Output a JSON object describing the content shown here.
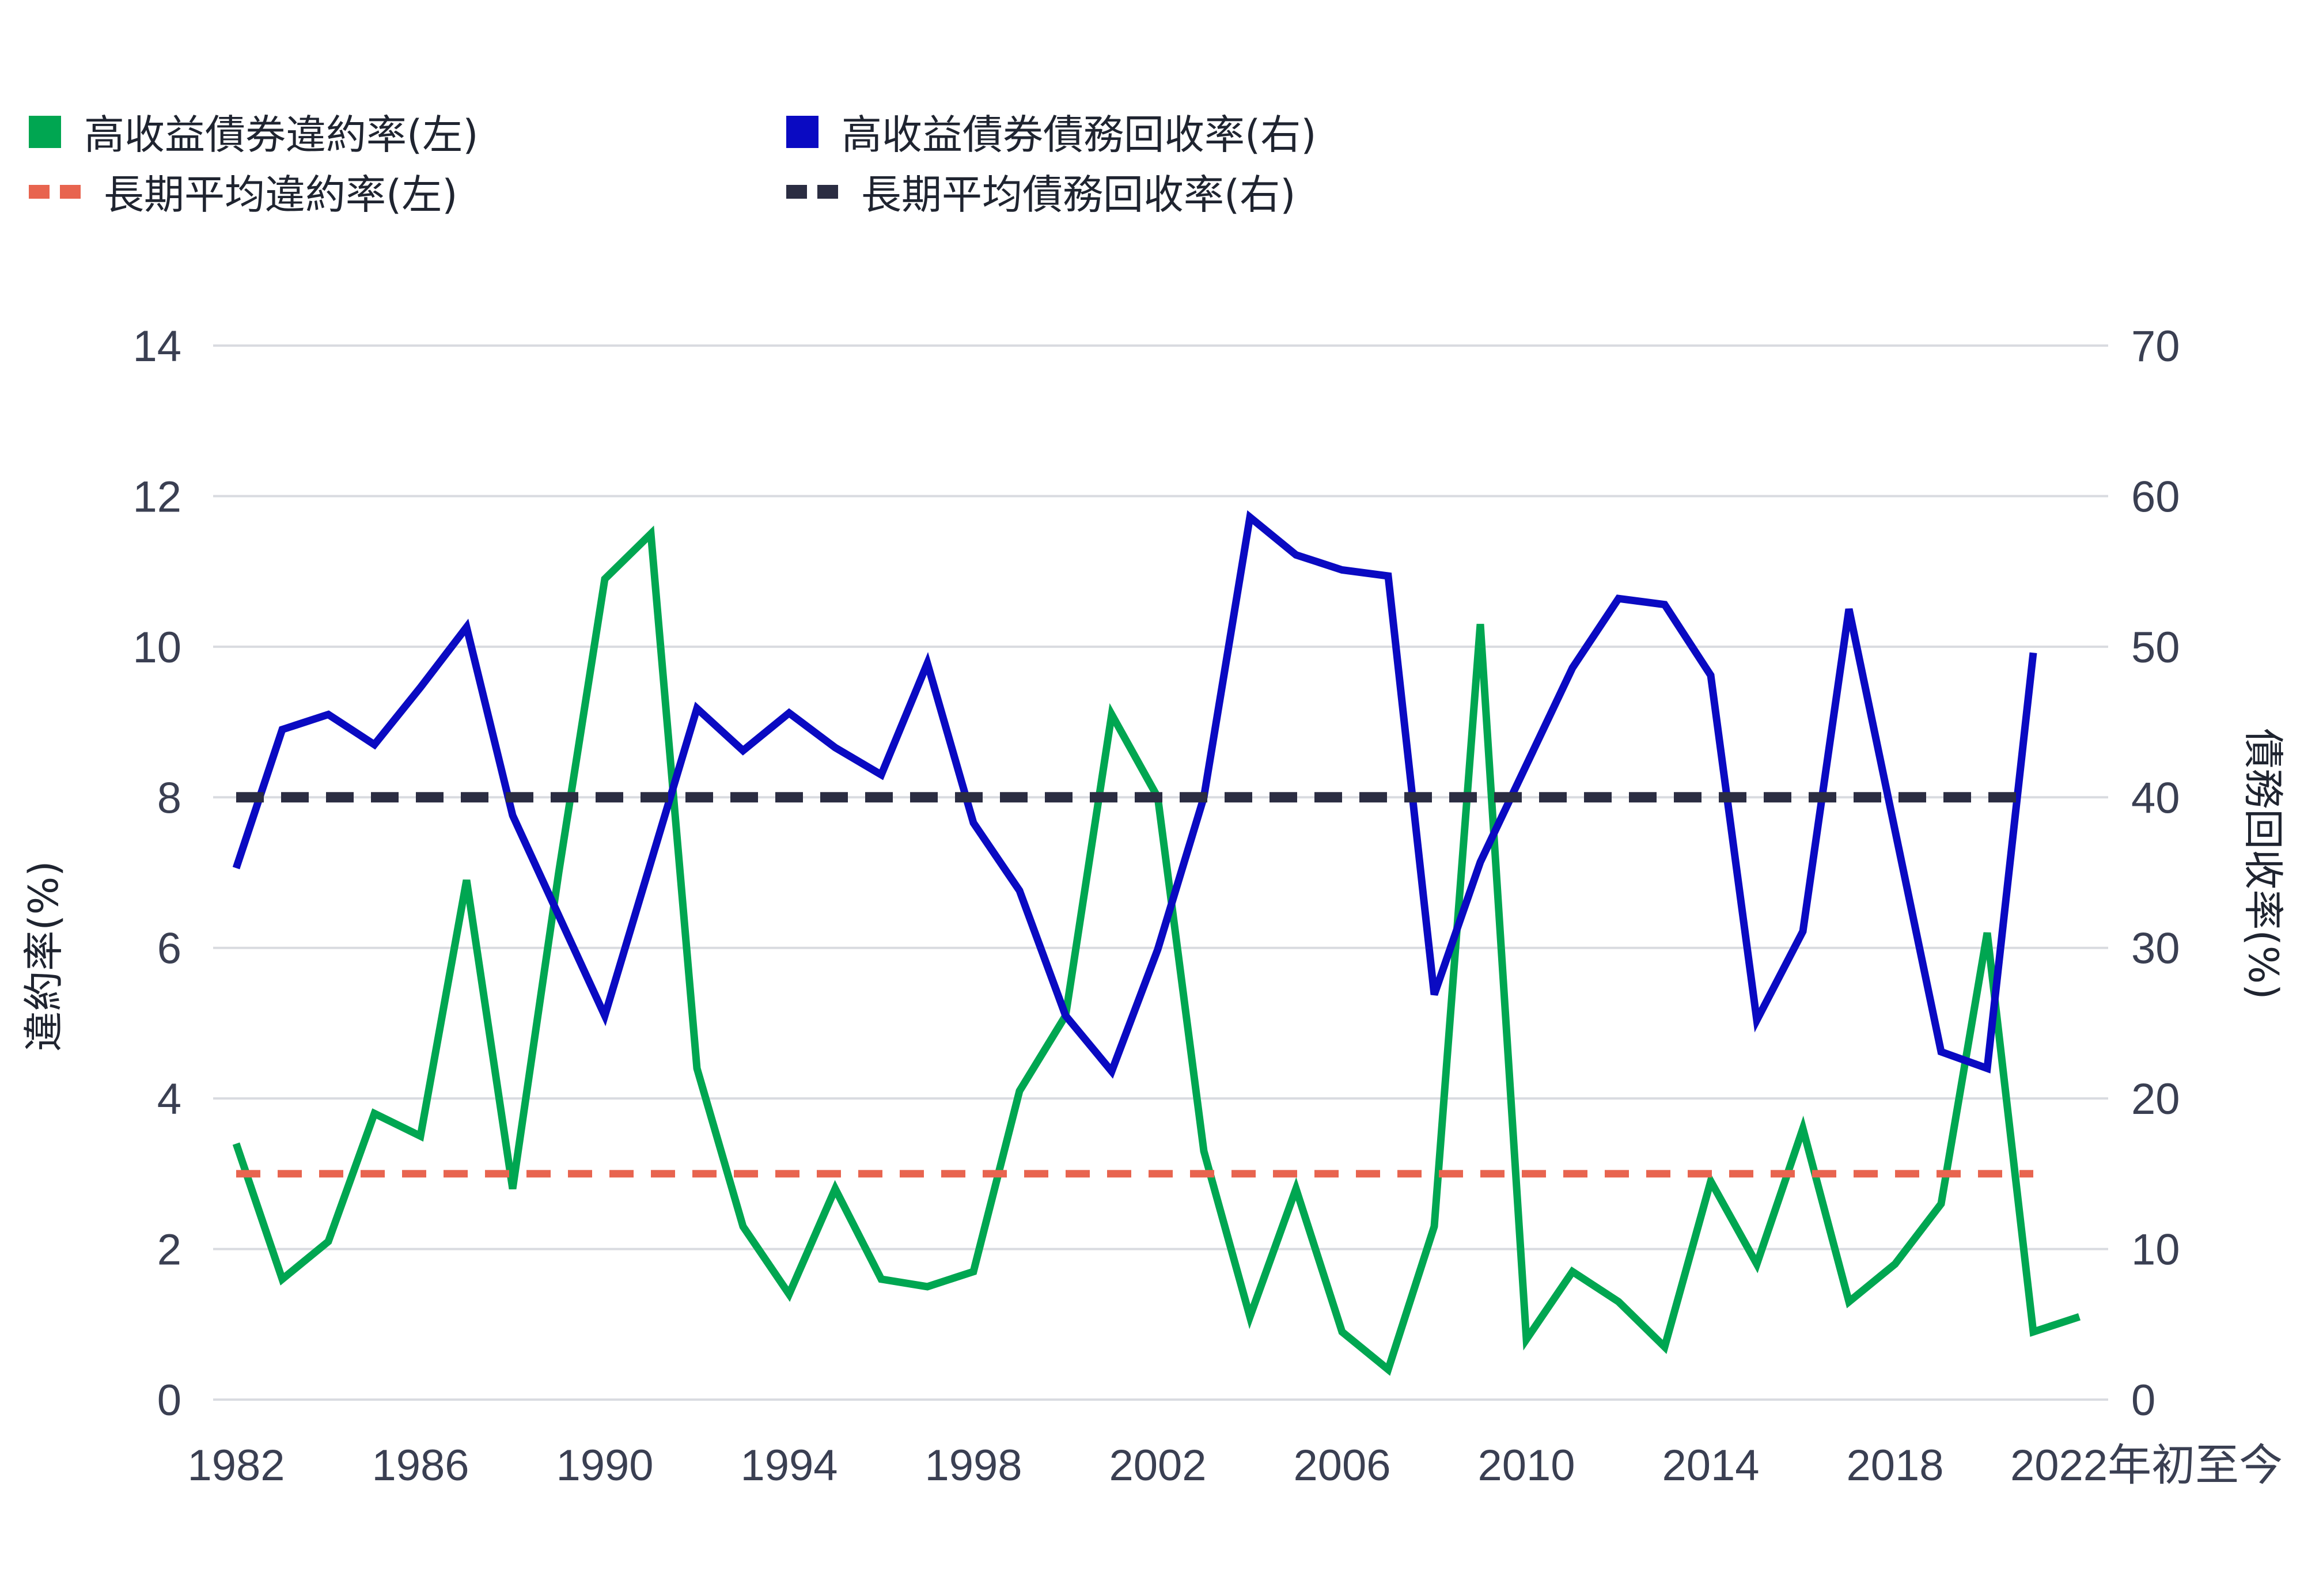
{
  "legend": [
    {
      "label": "高收益債券違約率(左)",
      "color": "#00a651",
      "style": "square"
    },
    {
      "label": "高收益債券債務回收率(右)",
      "color": "#0a0ac2",
      "style": "square"
    },
    {
      "label": "長期平均違約率(左)",
      "color": "#e8644f",
      "style": "dash"
    },
    {
      "label": "長期平均債務回收率(右)",
      "color": "#2b2d42",
      "style": "dash"
    }
  ],
  "chart_data": {
    "type": "line",
    "title": "",
    "ylabel_left": "違約率(%)",
    "ylabel_right": "債務回收率(%)",
    "ylim_left": [
      0,
      14
    ],
    "ylim_right": [
      0,
      70
    ],
    "yticks_left": [
      "0",
      "2",
      "4",
      "6",
      "8",
      "10",
      "12",
      "14"
    ],
    "yticks_right": [
      "0",
      "10",
      "20",
      "30",
      "40",
      "50",
      "60",
      "70"
    ],
    "xticks": [
      "1982",
      "1986",
      "1990",
      "1994",
      "1998",
      "2002",
      "2006",
      "2010",
      "2014",
      "2018",
      "2022年初至今"
    ],
    "grid": true,
    "x": [
      1982,
      1983,
      1984,
      1985,
      1986,
      1987,
      1988,
      1989,
      1990,
      1991,
      1992,
      1993,
      1994,
      1995,
      1996,
      1997,
      1998,
      1999,
      2000,
      2001,
      2002,
      2003,
      2004,
      2005,
      2006,
      2007,
      2008,
      2009,
      2010,
      2011,
      2012,
      2013,
      2014,
      2015,
      2016,
      2017,
      2018,
      2019,
      2020,
      2021,
      2022
    ],
    "series": [
      {
        "name": "高收益債券違約率(左)",
        "axis": "left",
        "color": "#00a651",
        "values": [
          3.4,
          1.6,
          2.1,
          3.8,
          3.5,
          6.9,
          2.8,
          7.0,
          10.9,
          11.5,
          4.4,
          2.3,
          1.4,
          2.8,
          1.6,
          1.5,
          1.7,
          4.1,
          5.1,
          9.1,
          8.0,
          3.3,
          1.1,
          2.8,
          0.9,
          0.4,
          2.3,
          10.3,
          0.8,
          1.7,
          1.3,
          0.7,
          2.9,
          1.8,
          3.6,
          1.3,
          1.8,
          2.6,
          6.2,
          0.9,
          1.1
        ]
      },
      {
        "name": "高收益債券債務回收率(右)",
        "axis": "right",
        "color": "#0a0ac2",
        "values": [
          35.3,
          44.5,
          45.5,
          43.5,
          47.3,
          51.3,
          38.8,
          null,
          25.5,
          null,
          45.9,
          43.1,
          45.6,
          43.3,
          41.5,
          48.9,
          38.3,
          33.8,
          25.5,
          21.8,
          29.9,
          40.0,
          58.6,
          56.1,
          55.1,
          54.7,
          26.9,
          35.7,
          null,
          48.6,
          53.2,
          52.8,
          48.1,
          25.2,
          31.1,
          52.5,
          null,
          23.1,
          22.0,
          49.6,
          null
        ]
      },
      {
        "name": "長期平均違約率(左)",
        "axis": "left",
        "color": "#e8644f",
        "dashed": true,
        "constant": 3.0
      },
      {
        "name": "長期平均債務回收率(右)",
        "axis": "right",
        "color": "#2b2d42",
        "dashed": true,
        "constant": 40.0
      }
    ]
  }
}
